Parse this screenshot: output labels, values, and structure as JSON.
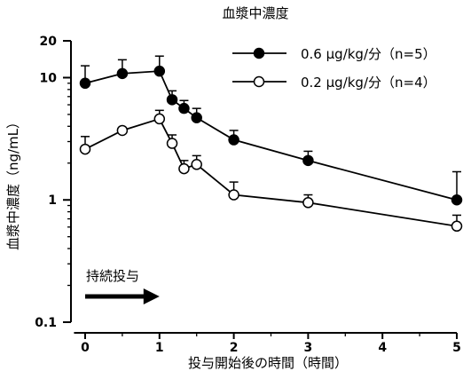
{
  "chart_data": {
    "type": "line",
    "title": "血漿中濃度",
    "xlabel": "投与開始後の時間（時間）",
    "ylabel": "血漿中濃度（ng/mL）",
    "y_scale": "log",
    "xlim": [
      -0.15,
      5.0
    ],
    "ylim": [
      0.1,
      20
    ],
    "x_ticks": [
      0,
      1,
      2,
      3,
      4,
      5
    ],
    "y_ticks": [
      0.1,
      1,
      10,
      20
    ],
    "y_tick_labels": [
      "0.1",
      "1",
      "10",
      "20"
    ],
    "legend_position": "top-right",
    "annotation": {
      "text": "持続投与",
      "arrow_from": 0.0,
      "arrow_to": 1.0
    },
    "series": [
      {
        "name": "0.6 μg/kg/分（n=5）",
        "marker": "filled-circle",
        "x": [
          0,
          0.5,
          1,
          1.17,
          1.33,
          1.5,
          2,
          3,
          5
        ],
        "y": [
          9.0,
          10.8,
          11.3,
          6.6,
          5.6,
          4.7,
          3.1,
          2.1,
          1.0
        ],
        "error_upper": [
          12.5,
          14.0,
          15.0,
          7.8,
          6.5,
          5.6,
          3.7,
          2.5,
          1.7
        ]
      },
      {
        "name": "0.2 μg/kg/分（n=4）",
        "marker": "open-circle",
        "x": [
          0,
          0.5,
          1,
          1.17,
          1.33,
          1.5,
          2,
          3,
          5
        ],
        "y": [
          2.6,
          3.7,
          4.6,
          2.9,
          1.8,
          1.95,
          1.1,
          0.95,
          0.61
        ],
        "error_upper": [
          3.3,
          null,
          5.4,
          3.4,
          2.1,
          2.3,
          1.4,
          1.1,
          0.75
        ]
      }
    ]
  }
}
